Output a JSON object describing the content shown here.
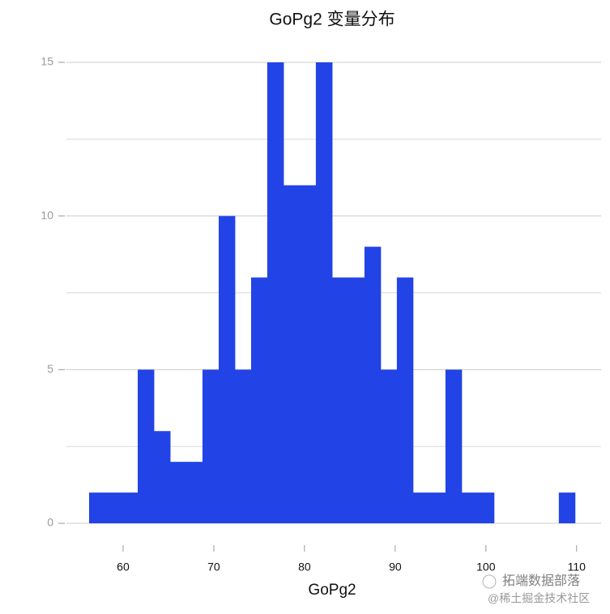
{
  "chart_data": {
    "type": "histogram",
    "title": "GoPg2 变量分布",
    "x_label": "GoPg2",
    "bins": [
      56.25,
      58.04,
      59.82,
      61.61,
      63.39,
      65.18,
      66.96,
      68.75,
      70.54,
      72.32,
      74.11,
      75.89,
      77.68,
      79.46,
      81.25,
      83.04,
      84.82,
      86.61,
      88.39,
      90.18,
      91.96,
      93.75,
      95.54,
      97.32,
      99.11,
      100.89,
      102.68,
      104.46,
      106.25,
      108.04,
      109.82
    ],
    "values": [
      1,
      1,
      1,
      5,
      3,
      2,
      2,
      5,
      10,
      5,
      8,
      15,
      11,
      11,
      15,
      8,
      8,
      9,
      5,
      8,
      1,
      1,
      5,
      1,
      1,
      0,
      0,
      0,
      0,
      1
    ],
    "color": "#2244e6",
    "xlim": [
      53.75,
      112.7
    ],
    "xticks": [
      60,
      70,
      80,
      90,
      100,
      110
    ],
    "ylim": [
      -0.5,
      15.5
    ],
    "yticks": [
      0,
      5,
      10,
      15
    ],
    "minor_yticks": [
      2.5,
      7.5,
      12.5
    ],
    "grid": true
  },
  "watermark": {
    "line1": "拓端数据部落",
    "line2": "@稀土掘金技术社区"
  }
}
